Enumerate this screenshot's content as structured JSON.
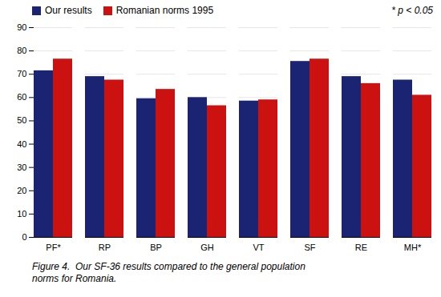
{
  "chart_data": {
    "type": "bar",
    "categories": [
      "PF*",
      "RP",
      "BP",
      "GH",
      "VT",
      "SF",
      "RE",
      "MH*"
    ],
    "series": [
      {
        "name": "Our results",
        "color": "#1a2472",
        "values": [
          71.5,
          69.0,
          59.5,
          60.0,
          58.5,
          75.5,
          69.0,
          67.5
        ]
      },
      {
        "name": "Romanian norms 1995",
        "color": "#cc1111",
        "values": [
          76.5,
          67.5,
          63.5,
          56.5,
          59.0,
          76.5,
          66.0,
          61.0
        ]
      }
    ],
    "ylim": [
      0,
      90
    ],
    "yticks": [
      0,
      10,
      20,
      30,
      40,
      50,
      60,
      70,
      80,
      90
    ],
    "grid": true,
    "legend": "top",
    "annotations": [
      "* p < 0.05"
    ],
    "caption": [
      "Figure 4.  Our SF-36 results compared to the general population",
      "norms for Romania."
    ]
  }
}
